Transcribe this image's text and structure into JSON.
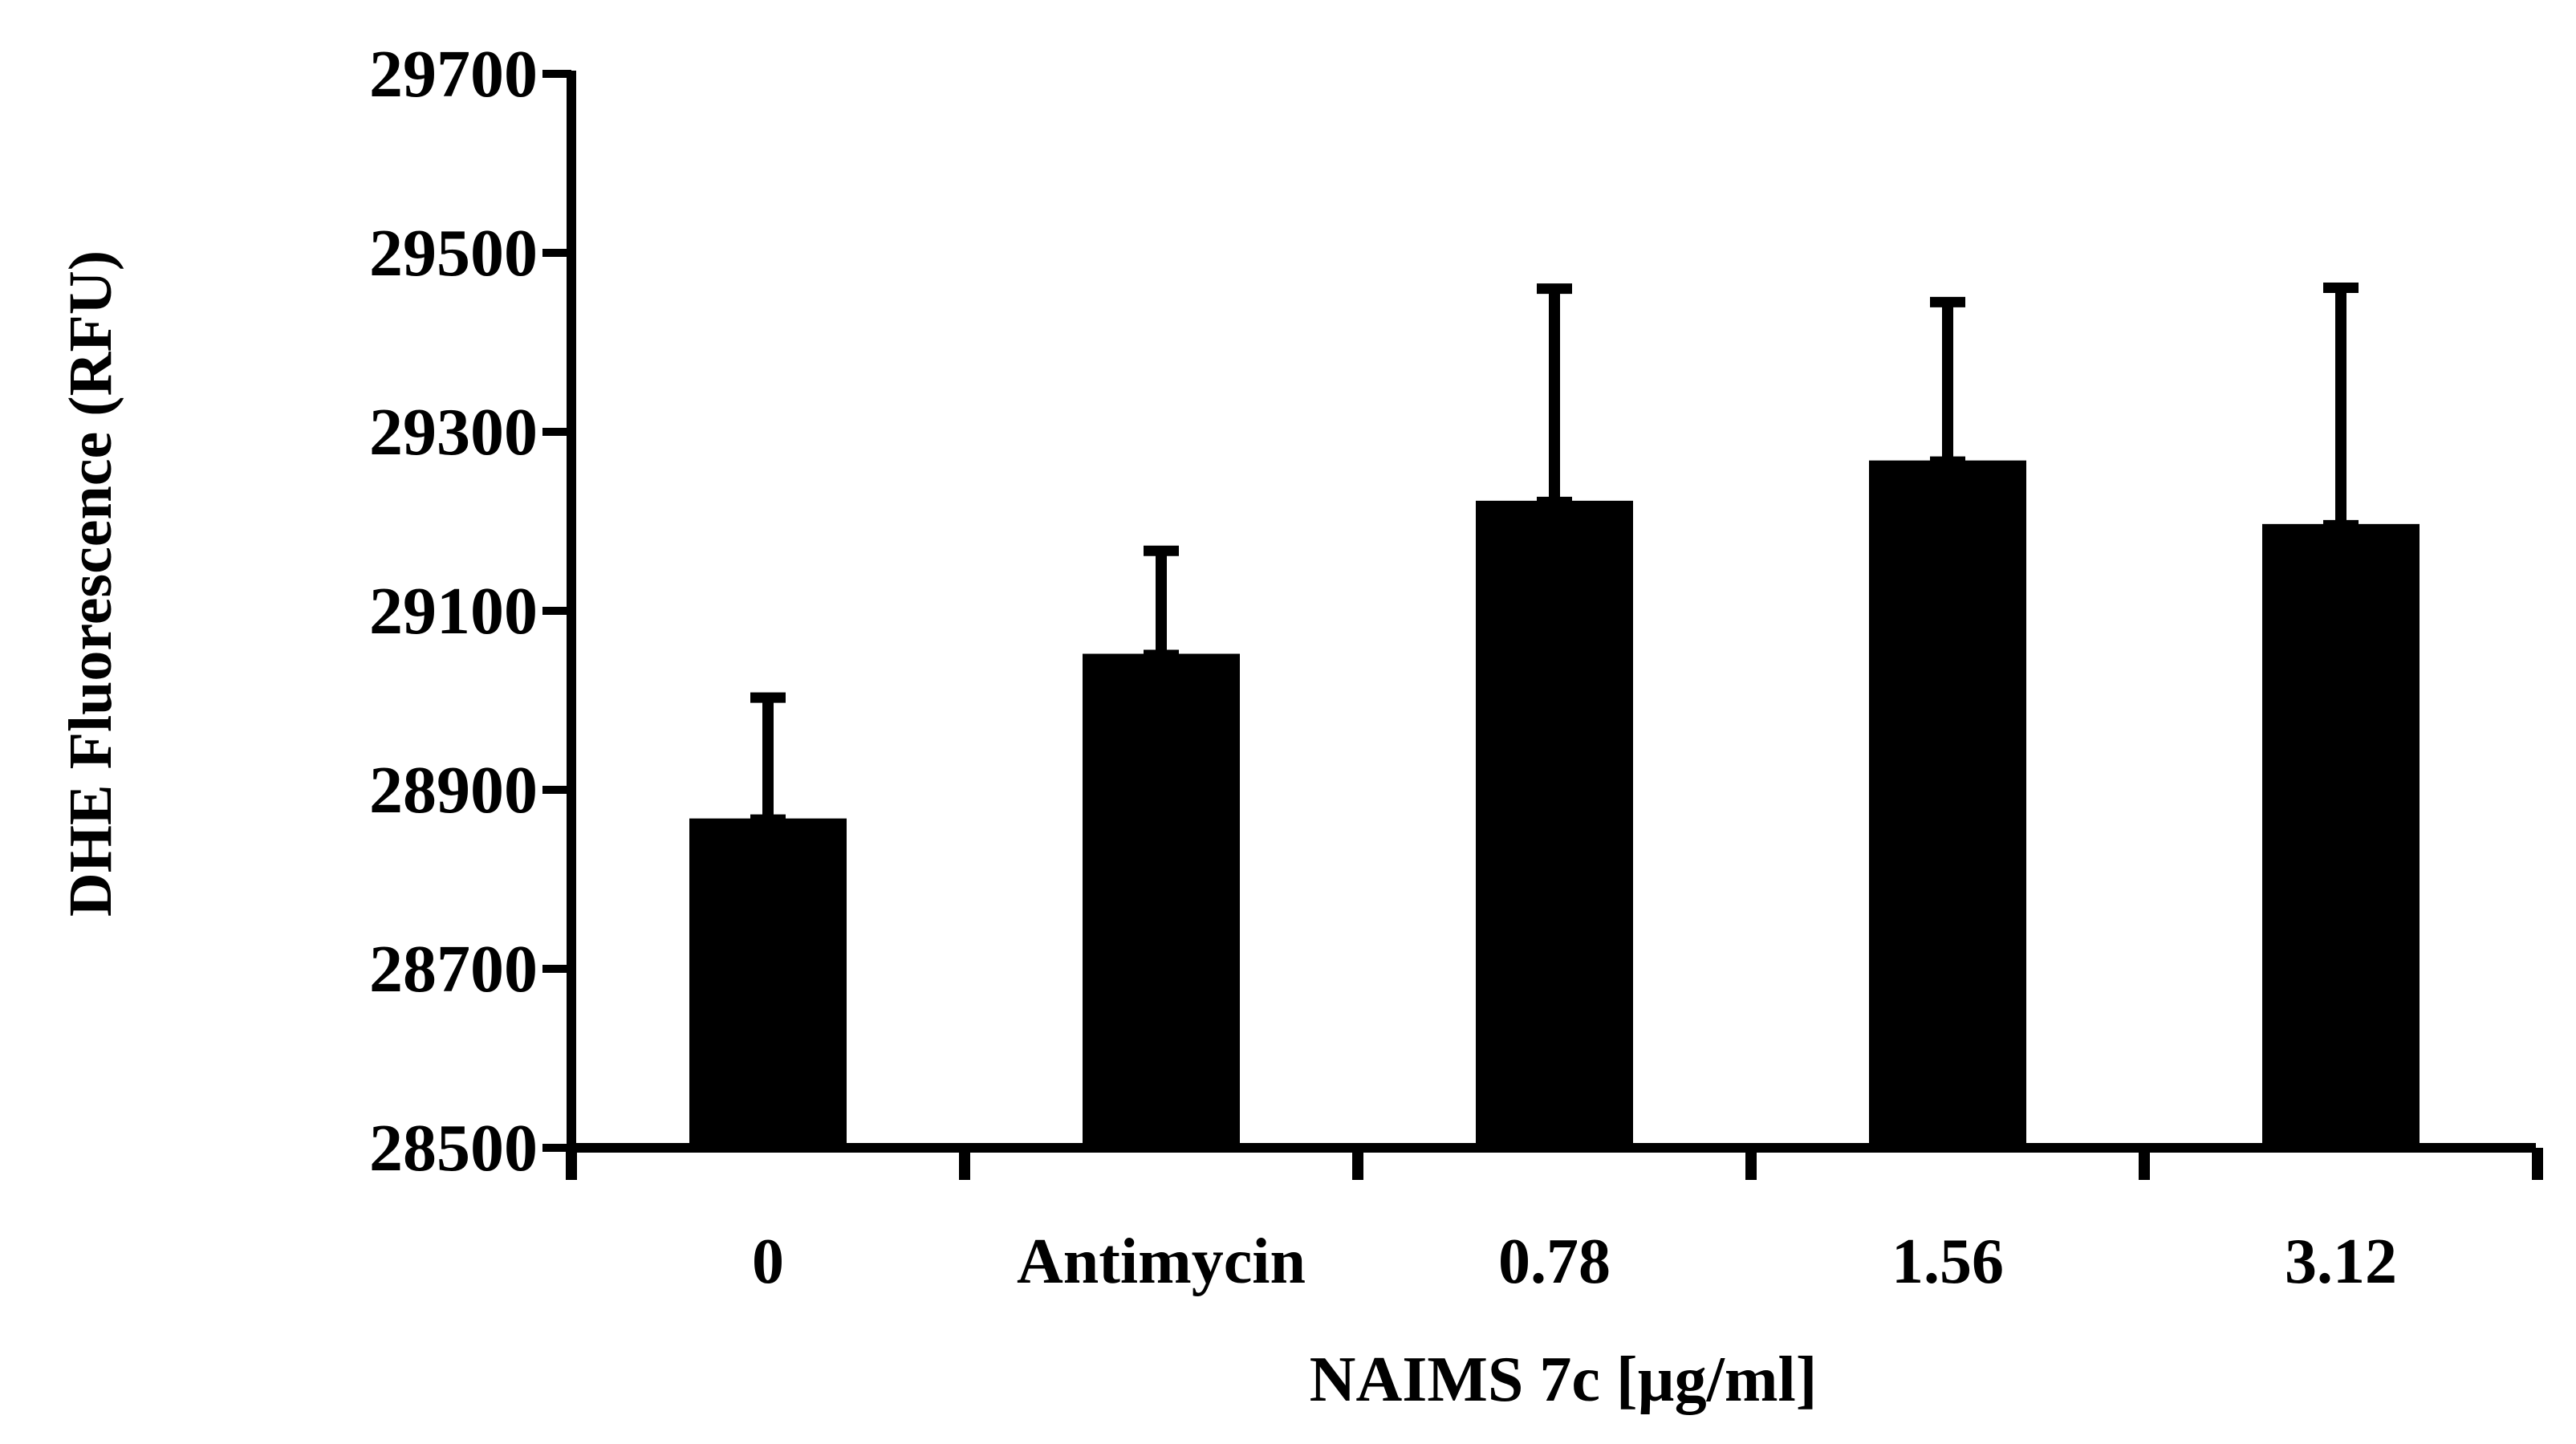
{
  "chart_data": {
    "type": "bar",
    "title": "",
    "xlabel": "NAIMS 7c [µg/ml]",
    "ylabel": "DHE Fluorescence (RFU)",
    "categories": [
      "0",
      "Antimycin",
      "0.78",
      "1.56",
      "3.12"
    ],
    "series": [
      {
        "name": "DHE Fluorescence",
        "values": [
          28868,
          29052,
          29223,
          29268,
          29197
        ],
        "error_upper": [
          135,
          115,
          237,
          177,
          264
        ]
      }
    ],
    "yticks": [
      28500,
      28700,
      28900,
      29100,
      29300,
      29500,
      29700
    ],
    "ylim": [
      28500,
      29700
    ],
    "grid": false,
    "legend": "none",
    "colors": {
      "bar": "#000000",
      "axis": "#000000",
      "background": "#ffffff"
    }
  }
}
